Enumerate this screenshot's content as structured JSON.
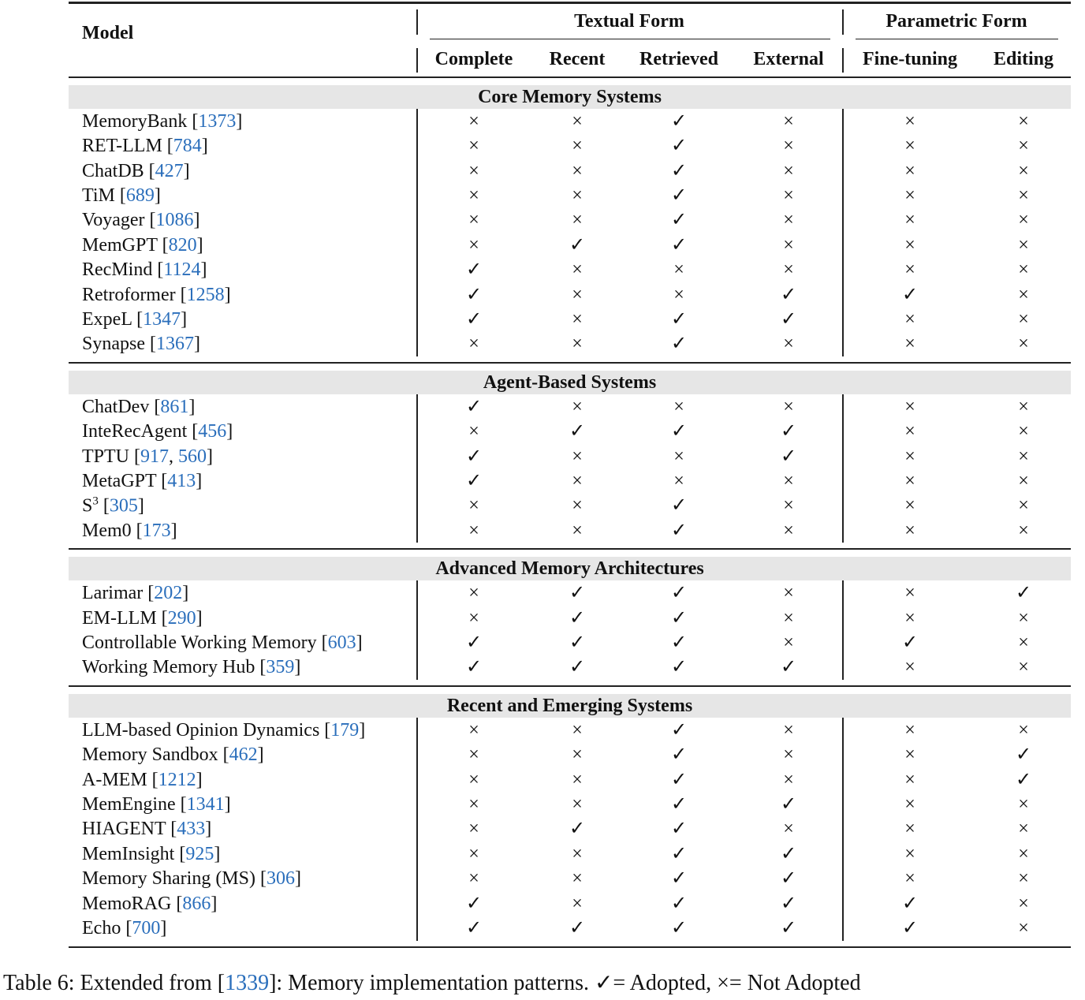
{
  "table": {
    "header": {
      "model": "Model",
      "groups": [
        {
          "label": "Textual Form",
          "columns": [
            "Complete",
            "Recent",
            "Retrieved",
            "External"
          ]
        },
        {
          "label": "Parametric Form",
          "columns": [
            "Fine-tuning",
            "Editing"
          ]
        }
      ]
    },
    "sections": [
      {
        "title": "Core Memory Systems",
        "rows": [
          {
            "model": "MemoryBank",
            "refs": [
              1373
            ],
            "cells": [
              "×",
              "×",
              "✓",
              "×",
              "×",
              "×"
            ]
          },
          {
            "model": "RET-LLM",
            "refs": [
              784
            ],
            "cells": [
              "×",
              "×",
              "✓",
              "×",
              "×",
              "×"
            ]
          },
          {
            "model": "ChatDB",
            "refs": [
              427
            ],
            "cells": [
              "×",
              "×",
              "✓",
              "×",
              "×",
              "×"
            ]
          },
          {
            "model": "TiM",
            "refs": [
              689
            ],
            "cells": [
              "×",
              "×",
              "✓",
              "×",
              "×",
              "×"
            ]
          },
          {
            "model": "Voyager",
            "refs": [
              1086
            ],
            "cells": [
              "×",
              "×",
              "✓",
              "×",
              "×",
              "×"
            ]
          },
          {
            "model": "MemGPT",
            "refs": [
              820
            ],
            "cells": [
              "×",
              "✓",
              "✓",
              "×",
              "×",
              "×"
            ]
          },
          {
            "model": "RecMind",
            "refs": [
              1124
            ],
            "cells": [
              "✓",
              "×",
              "×",
              "×",
              "×",
              "×"
            ]
          },
          {
            "model": "Retroformer",
            "refs": [
              1258
            ],
            "cells": [
              "✓",
              "×",
              "×",
              "✓",
              "✓",
              "×"
            ]
          },
          {
            "model": "ExpeL",
            "refs": [
              1347
            ],
            "cells": [
              "✓",
              "×",
              "✓",
              "✓",
              "×",
              "×"
            ]
          },
          {
            "model": "Synapse",
            "refs": [
              1367
            ],
            "cells": [
              "×",
              "×",
              "✓",
              "×",
              "×",
              "×"
            ]
          }
        ]
      },
      {
        "title": "Agent-Based Systems",
        "rows": [
          {
            "model": "ChatDev",
            "refs": [
              861
            ],
            "cells": [
              "✓",
              "×",
              "×",
              "×",
              "×",
              "×"
            ]
          },
          {
            "model": "InteRecAgent",
            "refs": [
              456
            ],
            "cells": [
              "×",
              "✓",
              "✓",
              "✓",
              "×",
              "×"
            ]
          },
          {
            "model": "TPTU",
            "refs": [
              917,
              560
            ],
            "cells": [
              "✓",
              "×",
              "×",
              "✓",
              "×",
              "×"
            ]
          },
          {
            "model": "MetaGPT",
            "refs": [
              413
            ],
            "cells": [
              "✓",
              "×",
              "×",
              "×",
              "×",
              "×"
            ]
          },
          {
            "model": "S",
            "sup": "3",
            "refs": [
              305
            ],
            "cells": [
              "×",
              "×",
              "✓",
              "×",
              "×",
              "×"
            ]
          },
          {
            "model": "Mem0",
            "refs": [
              173
            ],
            "cells": [
              "×",
              "×",
              "✓",
              "×",
              "×",
              "×"
            ]
          }
        ]
      },
      {
        "title": "Advanced Memory Architectures",
        "rows": [
          {
            "model": "Larimar",
            "refs": [
              202
            ],
            "cells": [
              "×",
              "✓",
              "✓",
              "×",
              "×",
              "✓"
            ]
          },
          {
            "model": "EM-LLM",
            "refs": [
              290
            ],
            "cells": [
              "×",
              "✓",
              "✓",
              "×",
              "×",
              "×"
            ]
          },
          {
            "model": "Controllable Working Memory",
            "refs": [
              603
            ],
            "cells": [
              "✓",
              "✓",
              "✓",
              "×",
              "✓",
              "×"
            ]
          },
          {
            "model": "Working Memory Hub",
            "refs": [
              359
            ],
            "cells": [
              "✓",
              "✓",
              "✓",
              "✓",
              "×",
              "×"
            ]
          }
        ]
      },
      {
        "title": "Recent and Emerging Systems",
        "rows": [
          {
            "model": "LLM-based Opinion Dynamics",
            "refs": [
              179
            ],
            "cells": [
              "×",
              "×",
              "✓",
              "×",
              "×",
              "×"
            ]
          },
          {
            "model": "Memory Sandbox",
            "refs": [
              462
            ],
            "cells": [
              "×",
              "×",
              "✓",
              "×",
              "×",
              "✓"
            ]
          },
          {
            "model": "A-MEM",
            "refs": [
              1212
            ],
            "cells": [
              "×",
              "×",
              "✓",
              "×",
              "×",
              "✓"
            ]
          },
          {
            "model": "MemEngine",
            "refs": [
              1341
            ],
            "cells": [
              "×",
              "×",
              "✓",
              "✓",
              "×",
              "×"
            ]
          },
          {
            "model": "HIAGENT",
            "refs": [
              433
            ],
            "cells": [
              "×",
              "✓",
              "✓",
              "×",
              "×",
              "×"
            ]
          },
          {
            "model": "MemInsight",
            "refs": [
              925
            ],
            "cells": [
              "×",
              "×",
              "✓",
              "✓",
              "×",
              "×"
            ]
          },
          {
            "model": "Memory Sharing (MS)",
            "refs": [
              306
            ],
            "cells": [
              "×",
              "×",
              "✓",
              "✓",
              "×",
              "×"
            ]
          },
          {
            "model": "MemoRAG",
            "refs": [
              866
            ],
            "cells": [
              "✓",
              "×",
              "✓",
              "✓",
              "✓",
              "×"
            ]
          },
          {
            "model": "Echo",
            "refs": [
              700
            ],
            "cells": [
              "✓",
              "✓",
              "✓",
              "✓",
              "✓",
              "×"
            ]
          }
        ]
      }
    ]
  },
  "caption": {
    "label": "Table 6: Extended from",
    "ref": 1339,
    "text": ": Memory implementation patterns. ✓= Adopted, ×= Not Adopted"
  }
}
